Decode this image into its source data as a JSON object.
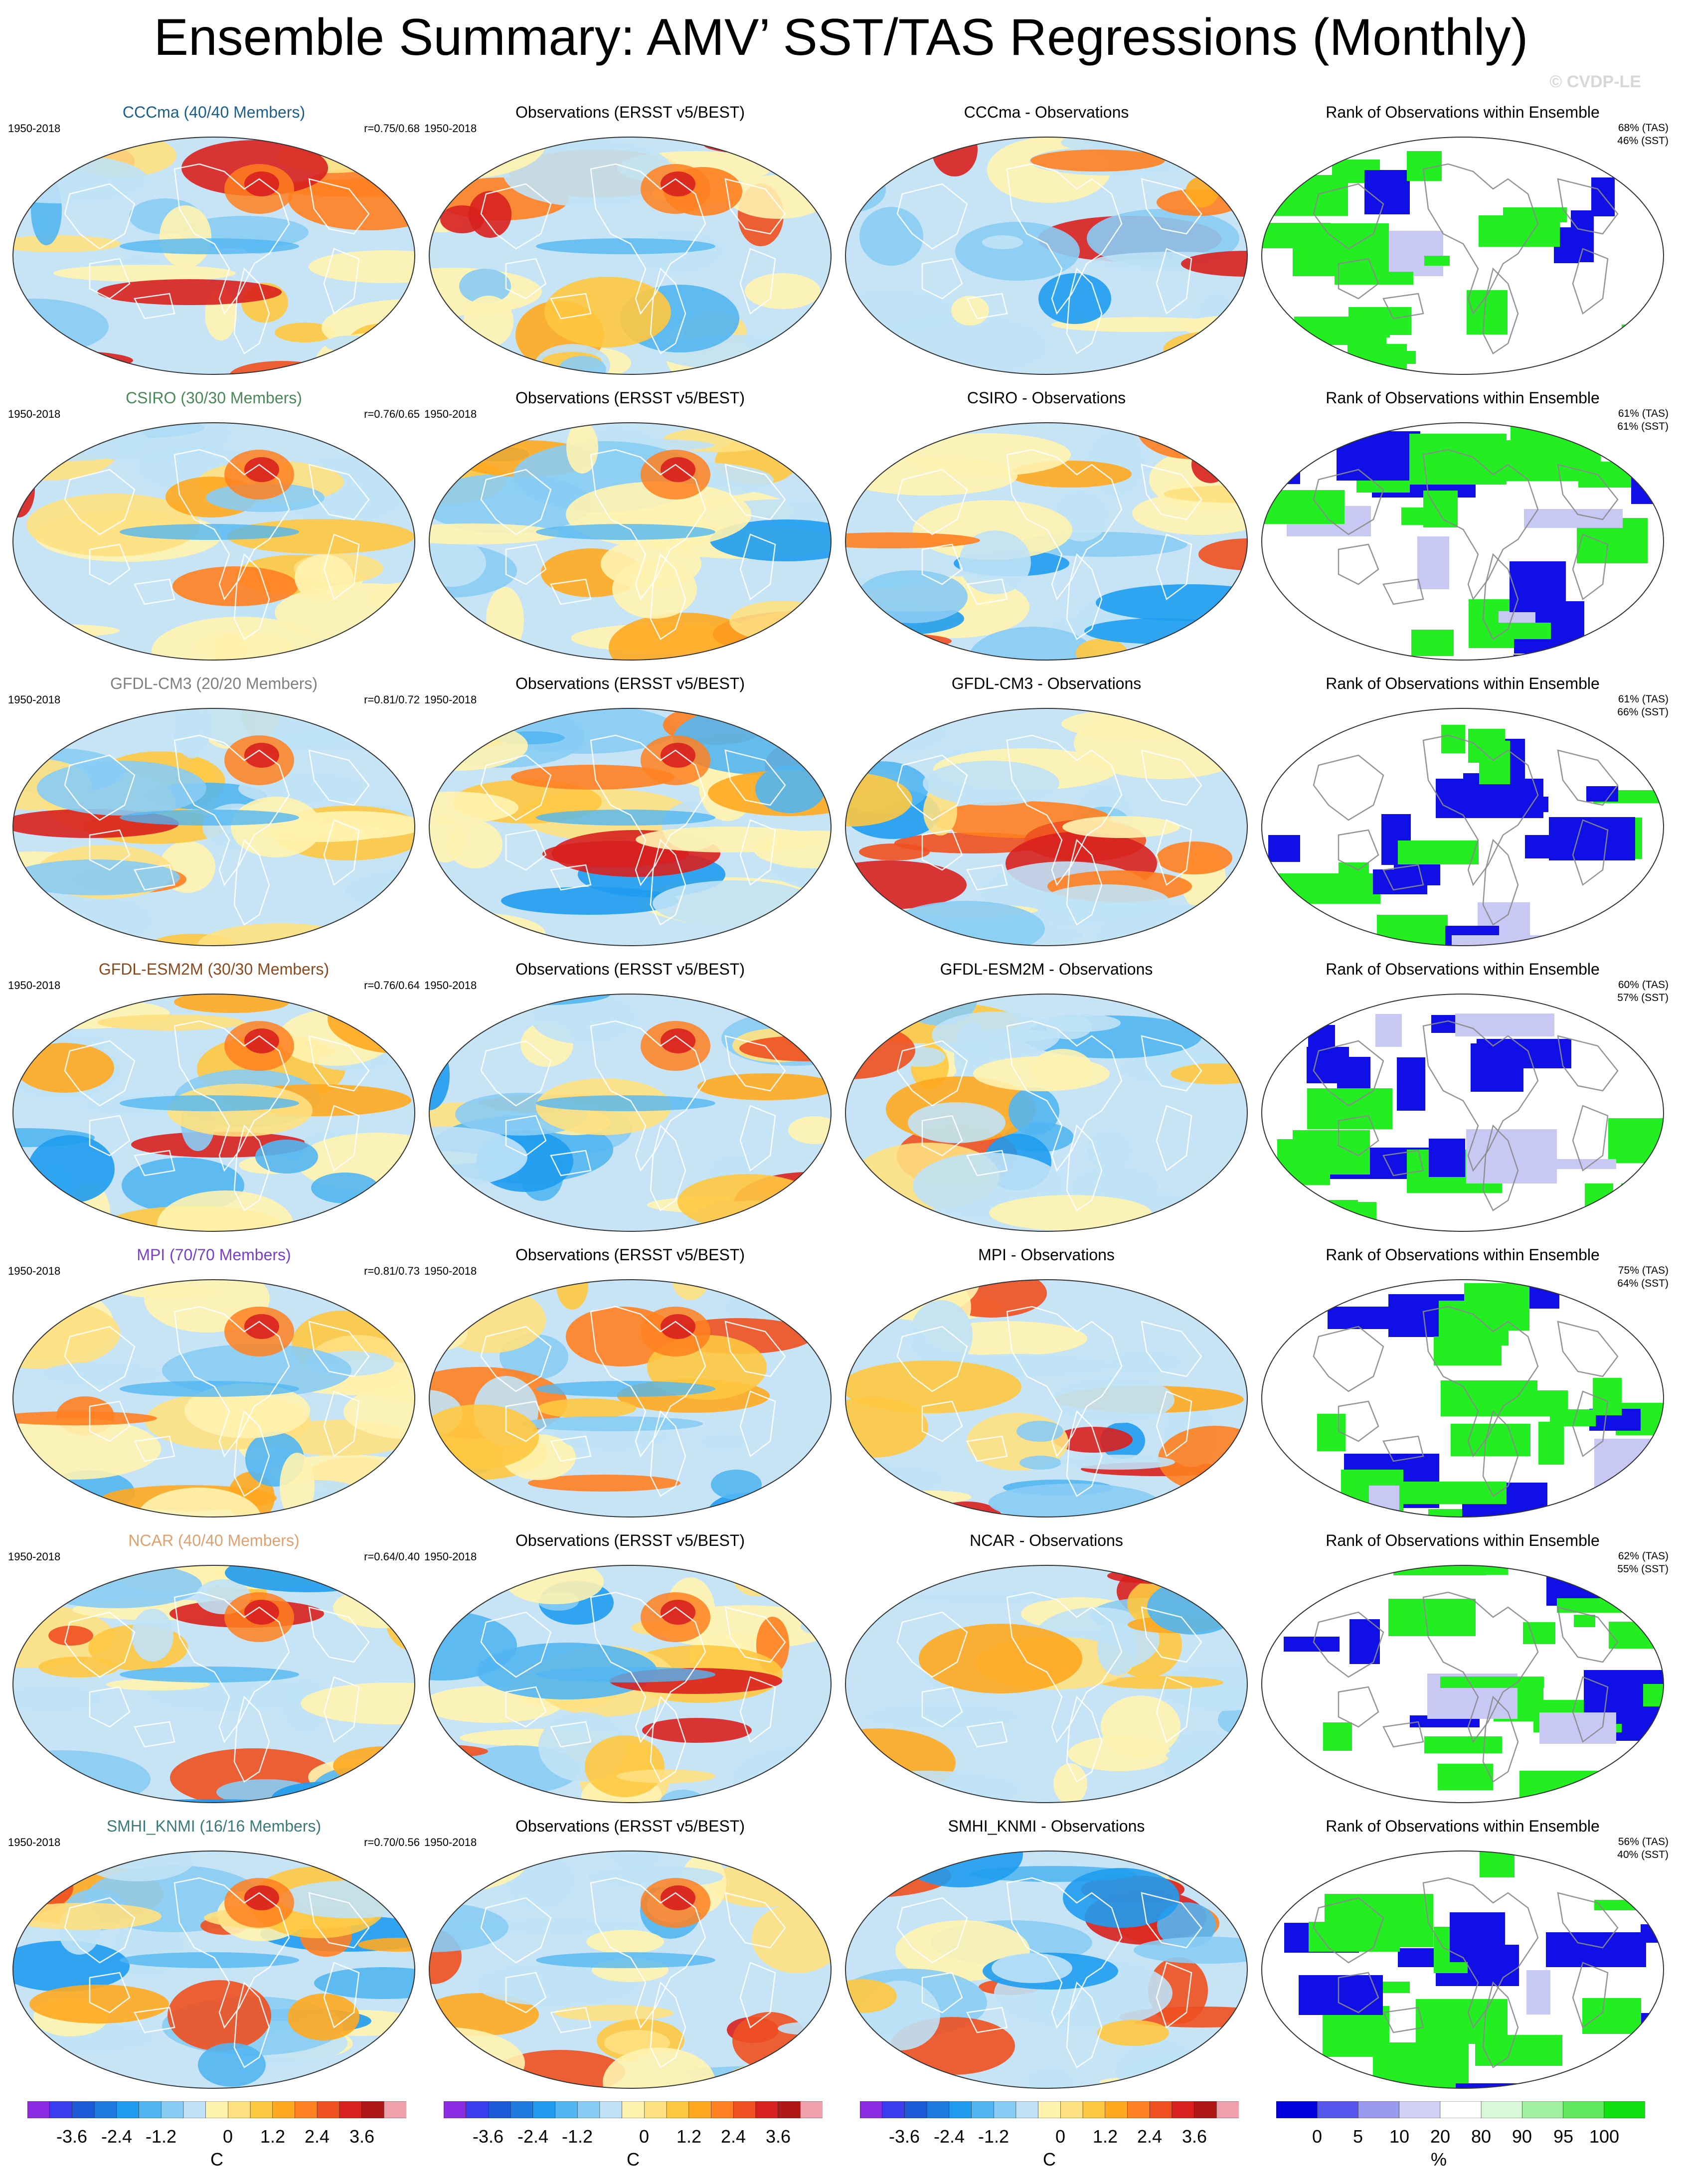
{
  "title": "Ensemble Summary: AMV’ SST/TAS Regressions (Monthly)",
  "copyright": "© CVDP-LE",
  "colors": {
    "land_outline": "#9a9a9a",
    "ocean_base": "#c6e4f6",
    "warm_strong": "#e23a1e",
    "cool_strong": "#2f86d8",
    "rank_high": "#22ee22",
    "rank_low": "#1010e6"
  },
  "rows": [
    {
      "model": {
        "title": "CCCma (40/40 Members)",
        "title_color": "#1a5f8a",
        "period": "1950-2018",
        "corr": "r=0.75/0.68"
      },
      "obs": {
        "title": "Observations (ERSST v5/BEST)",
        "period": "1950-2018"
      },
      "diff": {
        "title": "CCCma - Observations"
      },
      "rank": {
        "title": "Rank of Observations within Ensemble",
        "tas": "68% (TAS)",
        "sst": "46% (SST)"
      }
    },
    {
      "model": {
        "title": "CSIRO (30/30 Members)",
        "title_color": "#4a8a5a",
        "period": "1950-2018",
        "corr": "r=0.76/0.65"
      },
      "obs": {
        "title": "Observations (ERSST v5/BEST)",
        "period": "1950-2018"
      },
      "diff": {
        "title": "CSIRO - Observations"
      },
      "rank": {
        "title": "Rank of Observations within Ensemble",
        "tas": "61% (TAS)",
        "sst": "61% (SST)"
      }
    },
    {
      "model": {
        "title": "GFDL-CM3 (20/20 Members)",
        "title_color": "#808080",
        "period": "1950-2018",
        "corr": "r=0.81/0.72"
      },
      "obs": {
        "title": "Observations (ERSST v5/BEST)",
        "period": "1950-2018"
      },
      "diff": {
        "title": "GFDL-CM3 - Observations"
      },
      "rank": {
        "title": "Rank of Observations within Ensemble",
        "tas": "61% (TAS)",
        "sst": "66% (SST)"
      }
    },
    {
      "model": {
        "title": "GFDL-ESM2M (30/30 Members)",
        "title_color": "#8a4a20",
        "period": "1950-2018",
        "corr": "r=0.76/0.64"
      },
      "obs": {
        "title": "Observations (ERSST v5/BEST)",
        "period": "1950-2018"
      },
      "diff": {
        "title": "GFDL-ESM2M - Observations"
      },
      "rank": {
        "title": "Rank of Observations within Ensemble",
        "tas": "60% (TAS)",
        "sst": "57% (SST)"
      }
    },
    {
      "model": {
        "title": "MPI (70/70 Members)",
        "title_color": "#7a40c8",
        "period": "1950-2018",
        "corr": "r=0.81/0.73"
      },
      "obs": {
        "title": "Observations (ERSST v5/BEST)",
        "period": "1950-2018"
      },
      "diff": {
        "title": "MPI - Observations"
      },
      "rank": {
        "title": "Rank of Observations within Ensemble",
        "tas": "75% (TAS)",
        "sst": "64% (SST)"
      }
    },
    {
      "model": {
        "title": "NCAR (40/40 Members)",
        "title_color": "#e0a070",
        "period": "1950-2018",
        "corr": "r=0.64/0.40"
      },
      "obs": {
        "title": "Observations (ERSST v5/BEST)",
        "period": "1950-2018"
      },
      "diff": {
        "title": "NCAR - Observations"
      },
      "rank": {
        "title": "Rank of Observations within Ensemble",
        "tas": "62% (TAS)",
        "sst": "55% (SST)"
      }
    },
    {
      "model": {
        "title": "SMHI_KNMI (16/16 Members)",
        "title_color": "#3a7a7a",
        "period": "1950-2018",
        "corr": "r=0.70/0.56"
      },
      "obs": {
        "title": "Observations (ERSST v5/BEST)",
        "period": "1950-2018"
      },
      "diff": {
        "title": "SMHI_KNMI - Observations"
      },
      "rank": {
        "title": "Rank of Observations within Ensemble",
        "tas": "56% (TAS)",
        "sst": "40% (SST)"
      }
    }
  ],
  "colorbars": {
    "temperature": {
      "unit": "C",
      "ticks": [
        "-3.6",
        "-2.4",
        "-1.2",
        "0",
        "1.2",
        "2.4",
        "3.6"
      ],
      "colors": [
        "#8a2be2",
        "#3b3bf0",
        "#1d5ad8",
        "#1f7ae0",
        "#1f9cf0",
        "#52b6f2",
        "#88ccf4",
        "#bfe2f6",
        "#fff3b0",
        "#ffe080",
        "#ffc840",
        "#ffa820",
        "#ff8020",
        "#f05020",
        "#d8201e",
        "#b01818",
        "#f0a0a8"
      ]
    },
    "rank": {
      "unit": "%",
      "ticks": [
        "0",
        "5",
        "10",
        "20",
        "80",
        "90",
        "95",
        "100"
      ],
      "colors": [
        "#0000dd",
        "#5555ee",
        "#9999ee",
        "#d0d0f4",
        "#ffffff",
        "#d8f8d8",
        "#a0f0a0",
        "#60e860",
        "#10e010"
      ]
    }
  }
}
